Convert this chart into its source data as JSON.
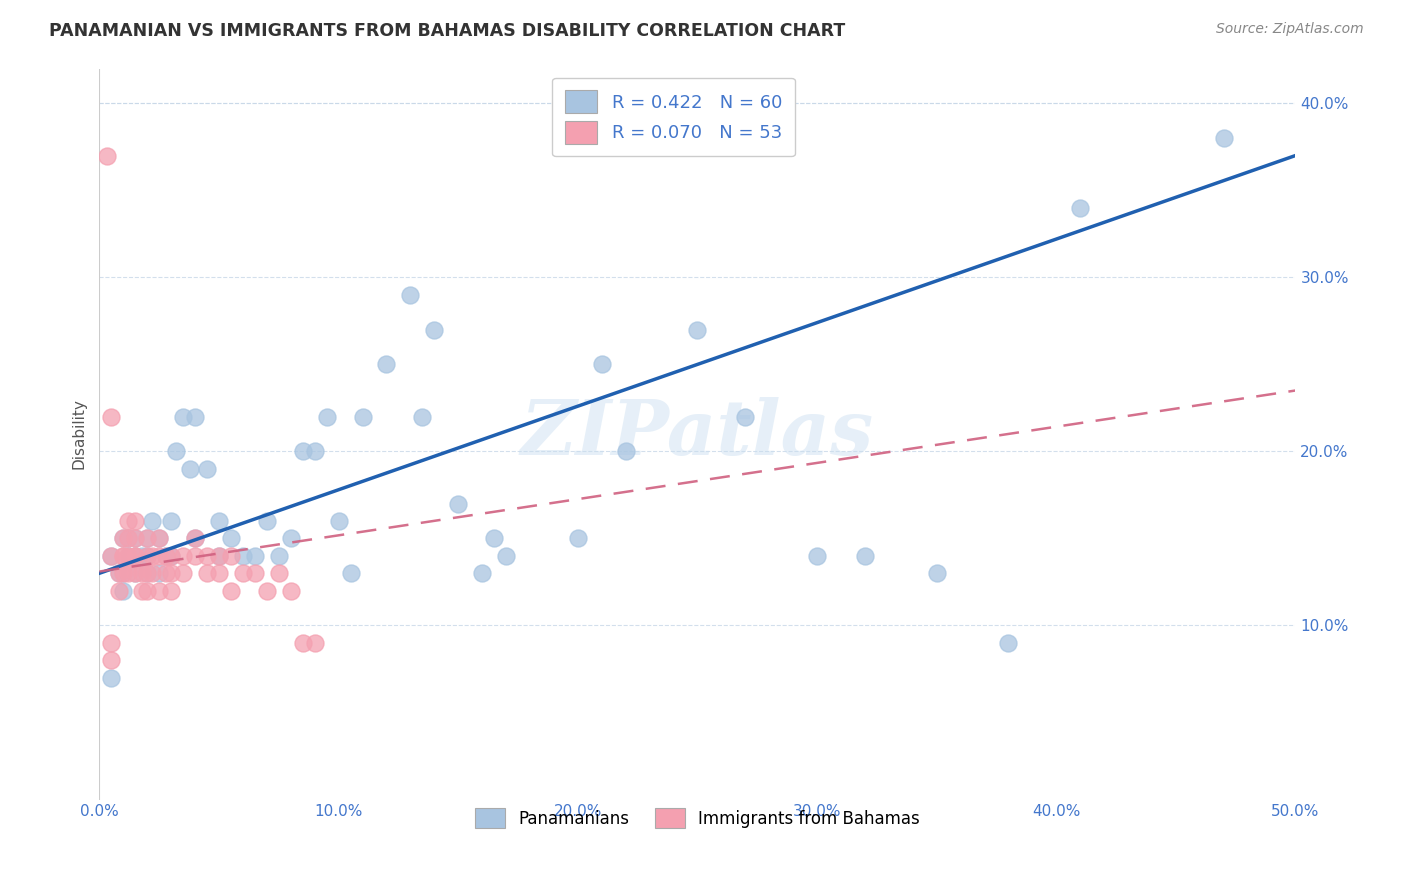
{
  "title": "PANAMANIAN VS IMMIGRANTS FROM BAHAMAS DISABILITY CORRELATION CHART",
  "source": "Source: ZipAtlas.com",
  "ylabel": "Disability",
  "xlim": [
    0.0,
    0.5
  ],
  "ylim": [
    0.0,
    0.42
  ],
  "xticks": [
    0.0,
    0.1,
    0.2,
    0.3,
    0.4,
    0.5
  ],
  "yticks": [
    0.0,
    0.1,
    0.2,
    0.3,
    0.4
  ],
  "r_blue": 0.422,
  "n_blue": 60,
  "r_pink": 0.07,
  "n_pink": 53,
  "blue_color": "#a8c4e0",
  "pink_color": "#f4a0b0",
  "line_blue": "#2060b0",
  "line_pink": "#d06080",
  "watermark": "ZIPatlas",
  "legend_labels": [
    "Panamanians",
    "Immigrants from Bahamas"
  ],
  "blue_line_start": 0.13,
  "blue_line_end": 0.37,
  "pink_line_start": 0.131,
  "pink_line_end": 0.235,
  "blue_scatter_x": [
    0.005,
    0.008,
    0.01,
    0.01,
    0.01,
    0.012,
    0.012,
    0.015,
    0.015,
    0.015,
    0.018,
    0.02,
    0.02,
    0.02,
    0.022,
    0.025,
    0.025,
    0.028,
    0.03,
    0.03,
    0.032,
    0.035,
    0.038,
    0.04,
    0.04,
    0.045,
    0.05,
    0.05,
    0.055,
    0.06,
    0.065,
    0.07,
    0.075,
    0.08,
    0.085,
    0.09,
    0.095,
    0.1,
    0.105,
    0.11,
    0.12,
    0.13,
    0.135,
    0.14,
    0.15,
    0.16,
    0.165,
    0.17,
    0.2,
    0.21,
    0.22,
    0.25,
    0.27,
    0.3,
    0.32,
    0.35,
    0.38,
    0.41,
    0.005,
    0.47
  ],
  "blue_scatter_y": [
    0.14,
    0.13,
    0.13,
    0.12,
    0.15,
    0.14,
    0.15,
    0.13,
    0.14,
    0.15,
    0.14,
    0.13,
    0.14,
    0.15,
    0.16,
    0.13,
    0.15,
    0.14,
    0.14,
    0.16,
    0.2,
    0.22,
    0.19,
    0.15,
    0.22,
    0.19,
    0.14,
    0.16,
    0.15,
    0.14,
    0.14,
    0.16,
    0.14,
    0.15,
    0.2,
    0.2,
    0.22,
    0.16,
    0.13,
    0.22,
    0.25,
    0.29,
    0.22,
    0.27,
    0.17,
    0.13,
    0.15,
    0.14,
    0.15,
    0.25,
    0.2,
    0.27,
    0.22,
    0.14,
    0.14,
    0.13,
    0.09,
    0.34,
    0.07,
    0.38
  ],
  "pink_scatter_x": [
    0.003,
    0.005,
    0.005,
    0.005,
    0.008,
    0.008,
    0.01,
    0.01,
    0.01,
    0.01,
    0.012,
    0.012,
    0.012,
    0.012,
    0.015,
    0.015,
    0.015,
    0.015,
    0.015,
    0.018,
    0.018,
    0.02,
    0.02,
    0.02,
    0.02,
    0.022,
    0.022,
    0.025,
    0.025,
    0.025,
    0.028,
    0.028,
    0.03,
    0.03,
    0.03,
    0.035,
    0.035,
    0.04,
    0.04,
    0.045,
    0.045,
    0.05,
    0.05,
    0.055,
    0.055,
    0.06,
    0.065,
    0.07,
    0.075,
    0.08,
    0.085,
    0.09,
    0.005
  ],
  "pink_scatter_y": [
    0.37,
    0.22,
    0.14,
    0.09,
    0.13,
    0.12,
    0.14,
    0.13,
    0.14,
    0.15,
    0.16,
    0.15,
    0.14,
    0.13,
    0.14,
    0.15,
    0.16,
    0.13,
    0.14,
    0.13,
    0.12,
    0.14,
    0.15,
    0.13,
    0.12,
    0.14,
    0.13,
    0.14,
    0.15,
    0.12,
    0.13,
    0.14,
    0.14,
    0.13,
    0.12,
    0.14,
    0.13,
    0.14,
    0.15,
    0.13,
    0.14,
    0.13,
    0.14,
    0.12,
    0.14,
    0.13,
    0.13,
    0.12,
    0.13,
    0.12,
    0.09,
    0.09,
    0.08
  ]
}
